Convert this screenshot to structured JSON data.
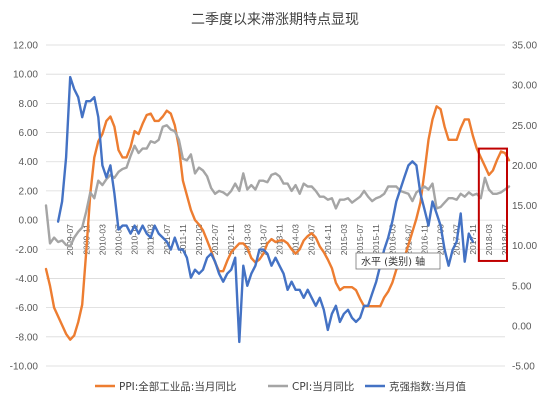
{
  "chart_data": {
    "type": "line",
    "title": "二季度以来滞涨期特点显现",
    "left_axis": {
      "min": -10,
      "max": 12,
      "step": 2,
      "tick_labels": [
        "-10.00",
        "-8.00",
        "-6.00",
        "-4.00",
        "-2.00",
        "0.00",
        "2.00",
        "4.00",
        "6.00",
        "8.00",
        "10.00",
        "12.00"
      ]
    },
    "right_axis": {
      "min": -5,
      "max": 35,
      "step": 5,
      "tick_labels": [
        "-5.00",
        "0.00",
        "5.00",
        "10.00",
        "15.00",
        "20.00",
        "25.00",
        "30.00",
        "35.00"
      ]
    },
    "x_tick_labels": [
      "2009-07",
      "2009-11",
      "2010-03",
      "2010-07",
      "2010-11",
      "2011-03",
      "2011-07",
      "2011-11",
      "2012-03",
      "2012-07",
      "2012-11",
      "2013-03",
      "2013-07",
      "2013-11",
      "2014-03",
      "2014-07",
      "2014-11",
      "2015-03",
      "2015-07",
      "2015-11",
      "2016-03",
      "2016-07",
      "2016-11",
      "2017-03",
      "2017-07",
      "2017-11",
      "2018-03",
      "2018-07"
    ],
    "gridlines": true,
    "legend_position": "bottom",
    "series": [
      {
        "name": "PPI:全部工业品:当月同比",
        "color": "#ED7D31",
        "axis": "left",
        "start": "2009-01",
        "values": [
          -3.35,
          -4.5,
          -6.0,
          -6.6,
          -7.2,
          -7.8,
          -8.2,
          -7.9,
          -7.0,
          -5.8,
          -2.1,
          1.8,
          4.3,
          5.4,
          5.9,
          6.8,
          7.1,
          6.4,
          4.8,
          4.3,
          4.3,
          5.0,
          6.1,
          5.9,
          6.6,
          7.2,
          7.3,
          6.8,
          6.8,
          7.1,
          7.5,
          7.3,
          6.5,
          5.0,
          2.7,
          1.7,
          0.7,
          0.0,
          -0.3,
          -0.7,
          -1.4,
          -2.1,
          -2.9,
          -3.5,
          -3.5,
          -2.8,
          -2.2,
          -1.9,
          -1.6,
          -1.6,
          -1.9,
          -2.6,
          -2.9,
          -2.7,
          -2.3,
          -1.6,
          -1.3,
          -1.5,
          -1.4,
          -1.4,
          -1.6,
          -2.0,
          -2.3,
          -2.0,
          -1.4,
          -1.1,
          -0.9,
          -1.2,
          -1.8,
          -2.2,
          -2.7,
          -3.3,
          -4.3,
          -4.8,
          -4.6,
          -4.6,
          -4.6,
          -4.8,
          -5.4,
          -5.9,
          -5.9,
          -5.9,
          -5.9,
          -5.9,
          -5.3,
          -4.9,
          -4.3,
          -3.4,
          -2.8,
          -2.6,
          -1.7,
          -0.8,
          0.1,
          1.2,
          3.3,
          5.5,
          6.9,
          7.8,
          7.6,
          6.4,
          5.5,
          5.5,
          5.5,
          6.3,
          6.9,
          6.9,
          5.8,
          4.9,
          4.3,
          3.7,
          3.1,
          3.4,
          4.1,
          4.7,
          4.6,
          4.1
        ]
      },
      {
        "name": "CPI:当月同比",
        "color": "#A5A5A5",
        "axis": "left",
        "start": "2009-01",
        "values": [
          1.0,
          -1.6,
          -1.2,
          -1.5,
          -1.4,
          -1.7,
          -1.8,
          -1.2,
          -0.8,
          -0.5,
          0.6,
          1.9,
          1.5,
          2.7,
          2.4,
          2.8,
          3.1,
          2.9,
          3.3,
          3.5,
          3.6,
          4.4,
          5.1,
          4.6,
          4.9,
          4.9,
          5.4,
          5.3,
          5.5,
          6.4,
          6.5,
          6.2,
          6.1,
          5.5,
          4.2,
          4.1,
          4.5,
          3.2,
          3.6,
          3.4,
          3.0,
          2.2,
          1.8,
          2.0,
          1.9,
          1.7,
          2.0,
          2.5,
          2.0,
          3.2,
          2.1,
          2.4,
          2.1,
          2.7,
          2.7,
          2.6,
          3.1,
          3.2,
          3.0,
          2.5,
          2.5,
          2.0,
          2.4,
          1.8,
          2.5,
          2.3,
          2.3,
          2.0,
          1.6,
          1.6,
          1.4,
          1.5,
          0.8,
          1.4,
          1.4,
          1.5,
          1.2,
          1.4,
          1.6,
          2.0,
          1.6,
          1.3,
          1.5,
          1.6,
          1.8,
          2.3,
          2.3,
          2.3,
          2.0,
          1.9,
          1.8,
          1.3,
          1.9,
          2.1,
          2.3,
          2.1,
          2.5,
          0.8,
          0.9,
          1.2,
          1.5,
          1.5,
          1.4,
          1.8,
          1.6,
          1.9,
          1.7,
          1.8,
          1.5,
          2.9,
          2.1,
          1.8,
          1.8,
          1.9,
          2.1,
          2.3
        ]
      },
      {
        "name": "克强指数:当月值",
        "color": "#4472C4",
        "axis": "right",
        "start": "2009-04",
        "values": [
          13.0,
          15.5,
          21.0,
          31.0,
          29.5,
          28.5,
          26.0,
          28.0,
          28.0,
          28.5,
          26.0,
          20.0,
          18.5,
          20.0,
          16.5,
          12.0,
          12.5,
          12.5,
          11.5,
          12.5,
          11.5,
          12.5,
          11.5,
          11.0,
          12.5,
          11.5,
          11.0,
          10.5,
          9.5,
          11.0,
          9.5,
          9.5,
          8.5,
          6.0,
          7.0,
          6.5,
          7.0,
          8.5,
          9.0,
          8.0,
          6.5,
          5.5,
          6.5,
          7.0,
          8.5,
          -2.0,
          7.5,
          5.0,
          6.5,
          7.5,
          9.5,
          9.5,
          9.0,
          7.5,
          8.5,
          7.5,
          6.5,
          4.5,
          5.5,
          4.5,
          4.5,
          3.5,
          4.5,
          3.5,
          2.5,
          3.5,
          2.0,
          -0.5,
          1.5,
          2.5,
          0.5,
          1.5,
          2.0,
          1.0,
          0.5,
          1.0,
          2.5,
          2.5,
          4.0,
          5.5,
          7.5,
          9.5,
          11.0,
          13.0,
          15.5,
          17.0,
          18.5,
          20.0,
          20.5,
          20.0,
          16.5,
          14.5,
          12.5,
          15.5,
          14.0,
          12.5,
          9.5,
          7.5,
          9.5,
          10.5,
          14.0,
          8.0,
          11.5,
          10.5
        ]
      }
    ],
    "tooltip": "水平 (类别) 轴"
  },
  "legend": [
    {
      "label": "PPI:全部工业品:当月同比",
      "color": "#ED7D31"
    },
    {
      "label": "CPI:当月同比",
      "color": "#A5A5A5"
    },
    {
      "label": "克强指数:当月值",
      "color": "#4472C4"
    }
  ],
  "colors": {
    "highlight_box": "#C00000",
    "grid": "#D9D9D9"
  }
}
